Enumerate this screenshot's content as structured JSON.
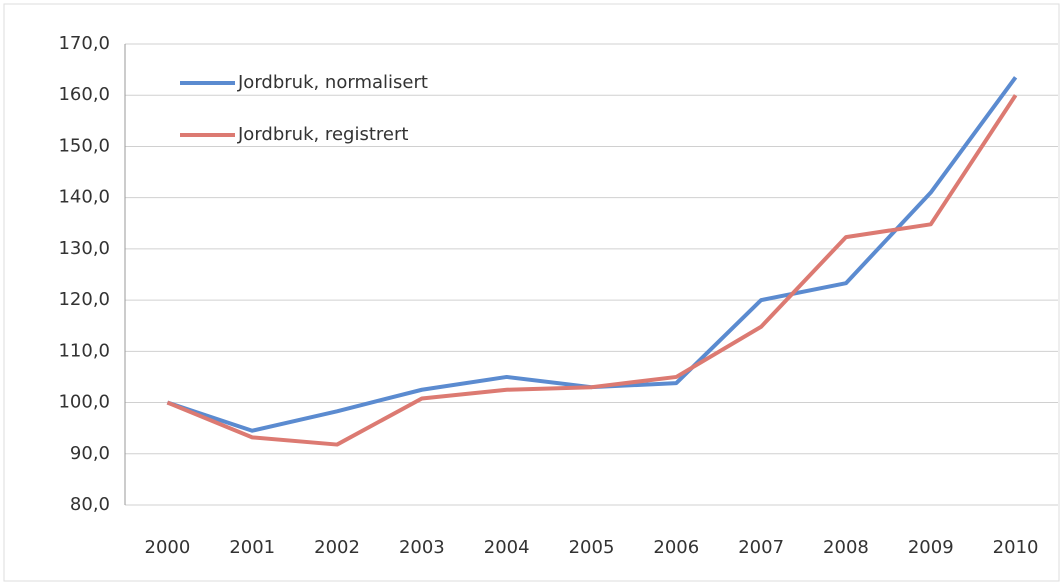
{
  "chart_data": {
    "type": "line",
    "categories": [
      "2000",
      "2001",
      "2002",
      "2003",
      "2004",
      "2005",
      "2006",
      "2007",
      "2008",
      "2009",
      "2010"
    ],
    "series": [
      {
        "name": "Jordbruk, normalisert",
        "color": "#5b8bd0",
        "values": [
          100,
          94.5,
          98.3,
          102.5,
          105,
          103,
          103.8,
          120,
          123.3,
          141,
          163.5
        ]
      },
      {
        "name": "Jordbruk, registrert",
        "color": "#dc7a72",
        "values": [
          100,
          93.2,
          91.8,
          100.8,
          102.5,
          103,
          105,
          114.8,
          132.3,
          134.8,
          160
        ]
      }
    ],
    "ylim": [
      80,
      170
    ],
    "yticks": [
      {
        "value": 80,
        "label": "80,0"
      },
      {
        "value": 90,
        "label": "90,0"
      },
      {
        "value": 100,
        "label": "100,0"
      },
      {
        "value": 110,
        "label": "110,0"
      },
      {
        "value": 120,
        "label": "120,0"
      },
      {
        "value": 130,
        "label": "130,0"
      },
      {
        "value": 140,
        "label": "140,0"
      },
      {
        "value": 150,
        "label": "150,0"
      },
      {
        "value": 160,
        "label": "160,0"
      },
      {
        "value": 170,
        "label": "170,0"
      }
    ],
    "grid": true,
    "legend": "top-left"
  }
}
